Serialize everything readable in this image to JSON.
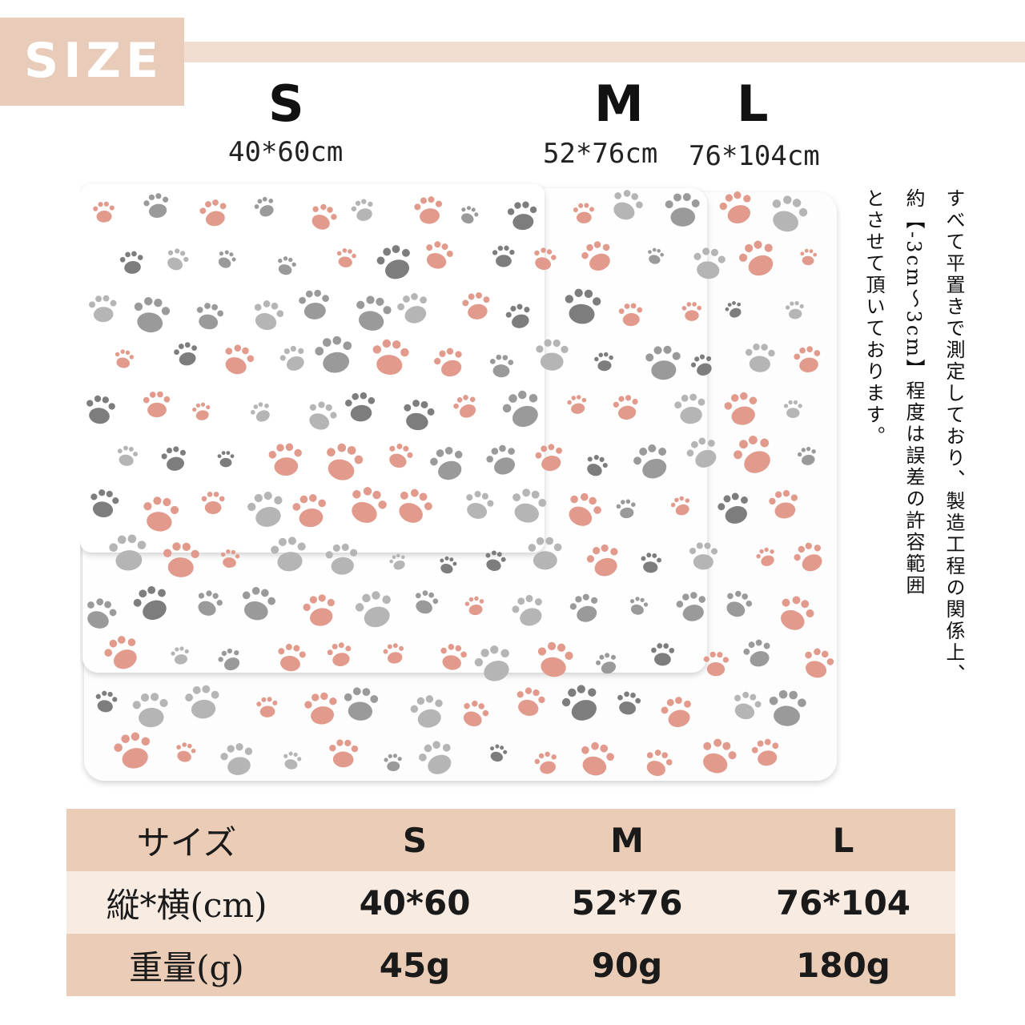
{
  "header": {
    "title": "SIZE"
  },
  "sizes": [
    {
      "label": "S",
      "dimension": "40*60cm"
    },
    {
      "label": "M",
      "dimension": "52*76cm"
    },
    {
      "label": "L",
      "dimension": "76*104cm"
    }
  ],
  "note": {
    "col1": "すべて平置きで測定しており、製造工程の関係上、",
    "col2": "約【-3cm～3cm】程度は誤差の許容範囲",
    "col3": "とさせて頂いております。"
  },
  "table": {
    "header": [
      "サイズ",
      "S",
      "M",
      "L"
    ],
    "rows": [
      [
        "縦*横(cm)",
        "40*60",
        "52*76",
        "76*104"
      ],
      [
        "重量(g)",
        "45g",
        "90g",
        "180g"
      ]
    ]
  },
  "colors": {
    "accent": "#e8cbb8",
    "bar": "#f1ddcf",
    "row_alt": "#f7ebe2",
    "paw_gray": "#7d7d7d",
    "paw_pink": "#e29a8c"
  }
}
